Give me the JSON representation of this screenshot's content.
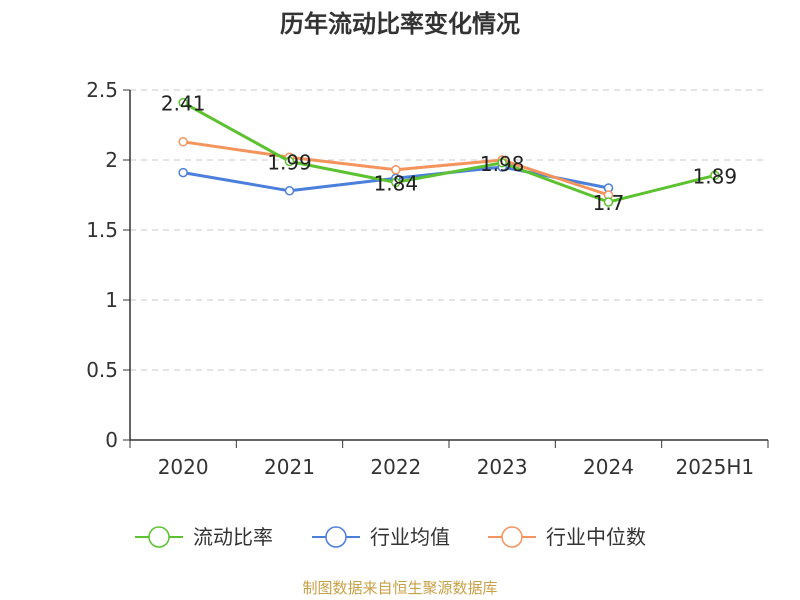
{
  "chart_data": {
    "type": "line",
    "title": "历年流动比率变化情况",
    "categories": [
      "2020",
      "2021",
      "2022",
      "2023",
      "2024",
      "2025H1"
    ],
    "y_ticks": [
      "0",
      "0.5",
      "1",
      "1.5",
      "2",
      "2.5"
    ],
    "ylim": [
      0,
      2.5
    ],
    "grid": true,
    "legend_position": "bottom",
    "series": [
      {
        "name": "流动比率",
        "color": "#5cc22f",
        "values": [
          2.41,
          1.99,
          1.84,
          1.98,
          1.7,
          1.89
        ],
        "labels": [
          "2.41",
          "1.99",
          "1.84",
          "1.98",
          "1.7",
          "1.89"
        ]
      },
      {
        "name": "行业均值",
        "color": "#4b7fdb",
        "values": [
          1.91,
          1.78,
          1.87,
          1.95,
          1.8,
          null
        ]
      },
      {
        "name": "行业中位数",
        "color": "#f4935c",
        "values": [
          2.13,
          2.02,
          1.93,
          2.0,
          1.75,
          null
        ]
      }
    ]
  },
  "source": "制图数据来自恒生聚源数据库"
}
